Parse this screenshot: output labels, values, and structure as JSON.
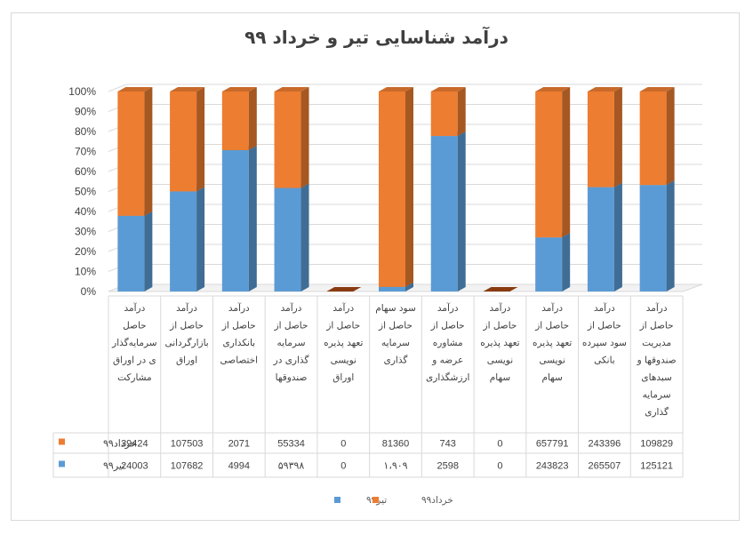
{
  "chart_data": {
    "type": "bar",
    "stacked": true,
    "percent_stacked": true,
    "title": "درآمد شناسایی تیر و خرداد ۹۹",
    "yticks": [
      "0%",
      "10%",
      "20%",
      "30%",
      "40%",
      "50%",
      "60%",
      "70%",
      "80%",
      "90%",
      "100%"
    ],
    "categories": [
      [
        "درآمد",
        "حاصل",
        "سرمایه‌گذار",
        "ی در اوراق",
        "مشارکت"
      ],
      [
        "درآمد",
        "حاصل از",
        "بازارگردانی",
        "اوراق"
      ],
      [
        "درآمد",
        "حاصل از",
        "بانکداری",
        "اختصاصی"
      ],
      [
        "درآمد",
        "حاصل از",
        "سرمایه",
        "گذاری در",
        "صندوقها"
      ],
      [
        "درآمد",
        "حاصل از",
        "تعهد پذیره",
        "نویسی",
        "اوراق"
      ],
      [
        "سود سهام",
        "حاصل از",
        "سرمایه",
        "گذاری"
      ],
      [
        "درآمد",
        "حاصل از",
        "مشاوره",
        "عرضه و",
        "ارزشگذاری"
      ],
      [
        "درآمد",
        "حاصل از",
        "تعهد پذیره",
        "نویسی",
        "سهام"
      ],
      [
        "درآمد",
        "حاصل از",
        "تعهد پذیره",
        "نویسی",
        "سهام"
      ],
      [
        "درآمد",
        "حاصل از",
        "سود سپرده",
        "بانکی"
      ],
      [
        "درآمد",
        "حاصل از",
        "مدیریت",
        "صندوقها و",
        "سبدهای",
        "سرمایه",
        "گذاری"
      ]
    ],
    "series": [
      {
        "name": "تیر۹۹",
        "color": "#5b9bd5",
        "labels": [
          "24003",
          "107682",
          "4994",
          "۵۹۳۹۸",
          "0",
          "۱،۹۰۹",
          "2598",
          "0",
          "243823",
          "265507",
          "125121"
        ],
        "values": [
          24003,
          107682,
          4994,
          59398,
          0,
          1909,
          2598,
          0,
          243823,
          265507,
          125121
        ]
      },
      {
        "name": "خرداد۹۹",
        "color": "#ed7d31",
        "labels": [
          "39424",
          "107503",
          "2071",
          "55334",
          "0",
          "81360",
          "743",
          "0",
          "657791",
          "243396",
          "109829"
        ],
        "values": [
          39424,
          107503,
          2071,
          55334,
          0,
          81360,
          743,
          0,
          657791,
          243396,
          109829
        ]
      }
    ]
  }
}
